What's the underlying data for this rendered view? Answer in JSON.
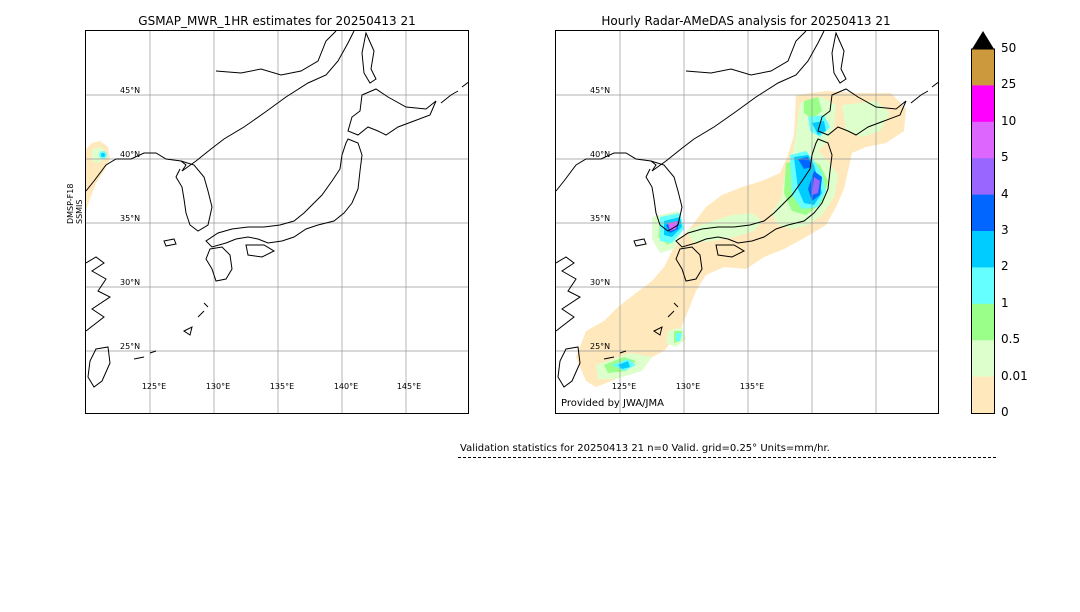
{
  "left_panel": {
    "title": "GSMAP_MWR_1HR estimates for 20250413 21",
    "satellite_label_line1": "DMSP-F18",
    "satellite_label_line2": "SSMIS",
    "lat_labels": [
      "45°N",
      "40°N",
      "35°N",
      "30°N",
      "25°N"
    ],
    "lon_labels": [
      "125°E",
      "130°E",
      "135°E",
      "140°E",
      "145°E"
    ]
  },
  "right_panel": {
    "title": "Hourly Radar-AMeDAS analysis for 20250413 21",
    "lat_labels": [
      "45°N",
      "40°N",
      "35°N",
      "30°N",
      "25°N"
    ],
    "lon_labels": [
      "125°E",
      "130°E",
      "135°E"
    ],
    "credit": "Provided by JWA/JMA"
  },
  "colorbar": {
    "units": "mm/hr",
    "labels": [
      "50",
      "25",
      "10",
      "5",
      "4",
      "3",
      "2",
      "1",
      "0.5",
      "0.01",
      "0"
    ],
    "colors": [
      "#cc9a3c",
      "#ff00ff",
      "#dd66ff",
      "#9966ff",
      "#0066ff",
      "#00ccff",
      "#66ffff",
      "#99ff88",
      "#ddffcc",
      "#ffe8bb"
    ],
    "extend_color": "#000000"
  },
  "stats": {
    "text": "Validation statistics for 20250413 21  n=0 Valid. grid=0.25° Units=mm/hr."
  }
}
